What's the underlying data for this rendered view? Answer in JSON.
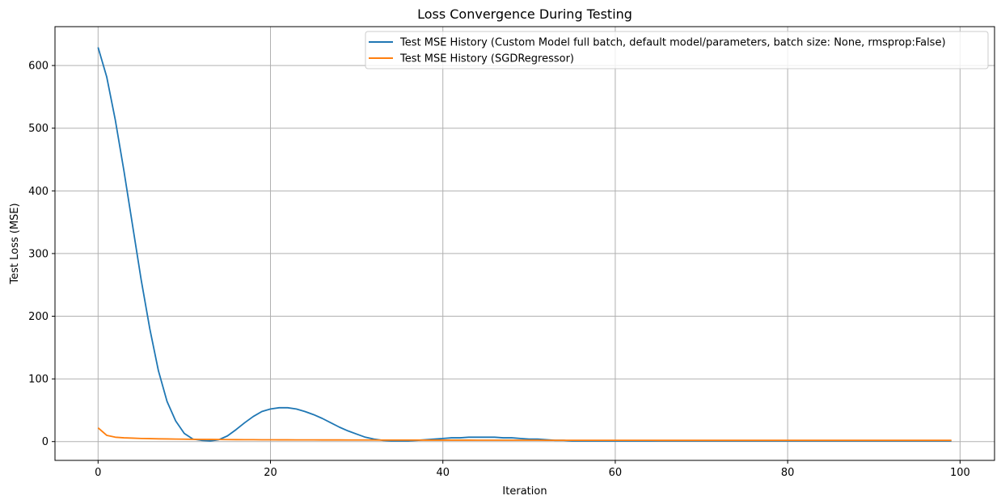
{
  "chart_data": {
    "type": "line",
    "title": "Loss Convergence During Testing",
    "xlabel": "Iteration",
    "ylabel": "Test Loss (MSE)",
    "xlim": [
      -5,
      104
    ],
    "ylim": [
      -30,
      662
    ],
    "xticks": [
      0,
      20,
      40,
      60,
      80,
      100
    ],
    "yticks": [
      0,
      100,
      200,
      300,
      400,
      500,
      600
    ],
    "grid": true,
    "legend_position": "top-right",
    "colors": {
      "series_1": "#1f77b4",
      "series_2": "#ff7f0e",
      "grid": "#b0b0b0"
    },
    "series": [
      {
        "name": "Test MSE History (Custom Model full batch, default model/parameters, batch size: None, rmsprop:False)",
        "x": [
          0,
          1,
          2,
          3,
          4,
          5,
          6,
          7,
          8,
          9,
          10,
          11,
          12,
          13,
          14,
          15,
          16,
          17,
          18,
          19,
          20,
          21,
          22,
          23,
          24,
          25,
          26,
          27,
          28,
          29,
          30,
          31,
          32,
          33,
          34,
          35,
          36,
          37,
          38,
          39,
          40,
          41,
          42,
          43,
          44,
          45,
          46,
          47,
          48,
          49,
          50,
          51,
          52,
          53,
          54,
          55,
          56,
          57,
          58,
          59,
          60,
          61,
          62,
          63,
          64,
          65,
          66,
          67,
          68,
          69,
          70,
          71,
          72,
          73,
          74,
          75,
          76,
          77,
          78,
          79,
          80,
          81,
          82,
          83,
          84,
          85,
          86,
          87,
          88,
          89,
          90,
          91,
          92,
          93,
          94,
          95,
          96,
          97,
          98,
          99
        ],
        "values": [
          629,
          582,
          513,
          432,
          345,
          258,
          180,
          113,
          64,
          33,
          13,
          4,
          2,
          1,
          3,
          9,
          19,
          30,
          40,
          48,
          52,
          54,
          54,
          52,
          48,
          43,
          37,
          30,
          23,
          17,
          12,
          7,
          4,
          2,
          1,
          1,
          1,
          2,
          3,
          4,
          5,
          6,
          6,
          7,
          7,
          7,
          7,
          6,
          6,
          5,
          4,
          4,
          3,
          2,
          2,
          1,
          1,
          1,
          1,
          1,
          1,
          1,
          1,
          1,
          1,
          1,
          1,
          1,
          1,
          1,
          1,
          1,
          1,
          1,
          1,
          1,
          1,
          1,
          1,
          1,
          1,
          1,
          1,
          1,
          1,
          1,
          1,
          1,
          1,
          1,
          1,
          1,
          1,
          1,
          1,
          1,
          1,
          1,
          1,
          1
        ]
      },
      {
        "name": "Test MSE History (SGDRegressor)",
        "x": [
          0,
          1,
          2,
          3,
          4,
          5,
          6,
          7,
          8,
          9,
          10,
          11,
          12,
          13,
          14,
          15,
          16,
          17,
          18,
          19,
          20,
          21,
          22,
          23,
          24,
          25,
          26,
          27,
          28,
          29,
          30,
          31,
          32,
          33,
          34,
          35,
          36,
          37,
          38,
          39,
          40,
          41,
          42,
          43,
          44,
          45,
          46,
          47,
          48,
          49,
          50,
          51,
          52,
          53,
          54,
          55,
          56,
          57,
          58,
          59,
          60,
          61,
          62,
          63,
          64,
          65,
          66,
          67,
          68,
          69,
          70,
          71,
          72,
          73,
          74,
          75,
          76,
          77,
          78,
          79,
          80,
          81,
          82,
          83,
          84,
          85,
          86,
          87,
          88,
          89,
          90,
          91,
          92,
          93,
          94,
          95,
          96,
          97,
          98,
          99
        ],
        "values": [
          22,
          10,
          7,
          6,
          5.5,
          5,
          4.7,
          4.4,
          4.2,
          4,
          3.8,
          3.6,
          3.5,
          3.4,
          3.3,
          3.2,
          3.1,
          3,
          3,
          2.9,
          2.9,
          2.8,
          2.8,
          2.7,
          2.7,
          2.7,
          2.6,
          2.6,
          2.6,
          2.5,
          2.5,
          2.5,
          2.5,
          2.4,
          2.4,
          2.4,
          2.4,
          2.4,
          2.3,
          2.3,
          2.3,
          2.3,
          2.3,
          2.3,
          2.2,
          2.2,
          2.2,
          2.2,
          2.2,
          2.2,
          2.2,
          2.2,
          2.1,
          2.1,
          2.1,
          2.1,
          2.1,
          2.1,
          2.1,
          2.1,
          2.1,
          2.1,
          2.1,
          2.1,
          2.1,
          2,
          2,
          2,
          2,
          2,
          2,
          2,
          2,
          2,
          2,
          2,
          2,
          2,
          2,
          2,
          2,
          2,
          2,
          2,
          2,
          2,
          2,
          2,
          2,
          2,
          2,
          2,
          2,
          2,
          2,
          2,
          2,
          2,
          2,
          2
        ]
      }
    ]
  }
}
